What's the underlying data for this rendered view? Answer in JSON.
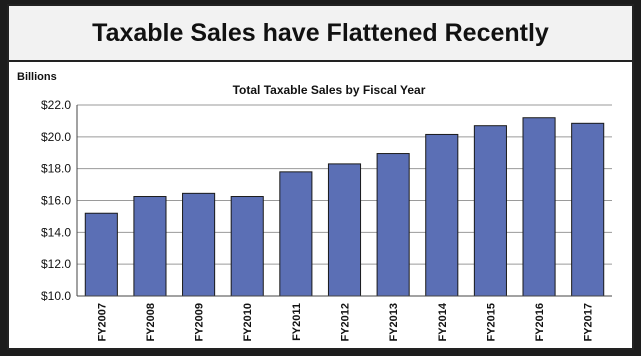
{
  "slide_title": "Taxable Sales have Flattened Recently",
  "chart_data": {
    "type": "bar",
    "title": "Total Taxable Sales by Fiscal Year",
    "ylabel": "Billions",
    "xlabel": "",
    "categories": [
      "FY2007",
      "FY2008",
      "FY2009",
      "FY2010",
      "FY2011",
      "FY2012",
      "FY2013",
      "FY2014",
      "FY2015",
      "FY2016",
      "FY2017"
    ],
    "values": [
      15.2,
      16.25,
      16.45,
      16.25,
      17.8,
      18.3,
      18.95,
      20.15,
      20.7,
      21.2,
      20.85
    ],
    "yticks": [
      "$10.0",
      "$12.0",
      "$14.0",
      "$16.0",
      "$18.0",
      "$20.0",
      "$22.0"
    ],
    "ylim": [
      10,
      22
    ],
    "grid": true,
    "bar_color": "#5b6fb5"
  }
}
